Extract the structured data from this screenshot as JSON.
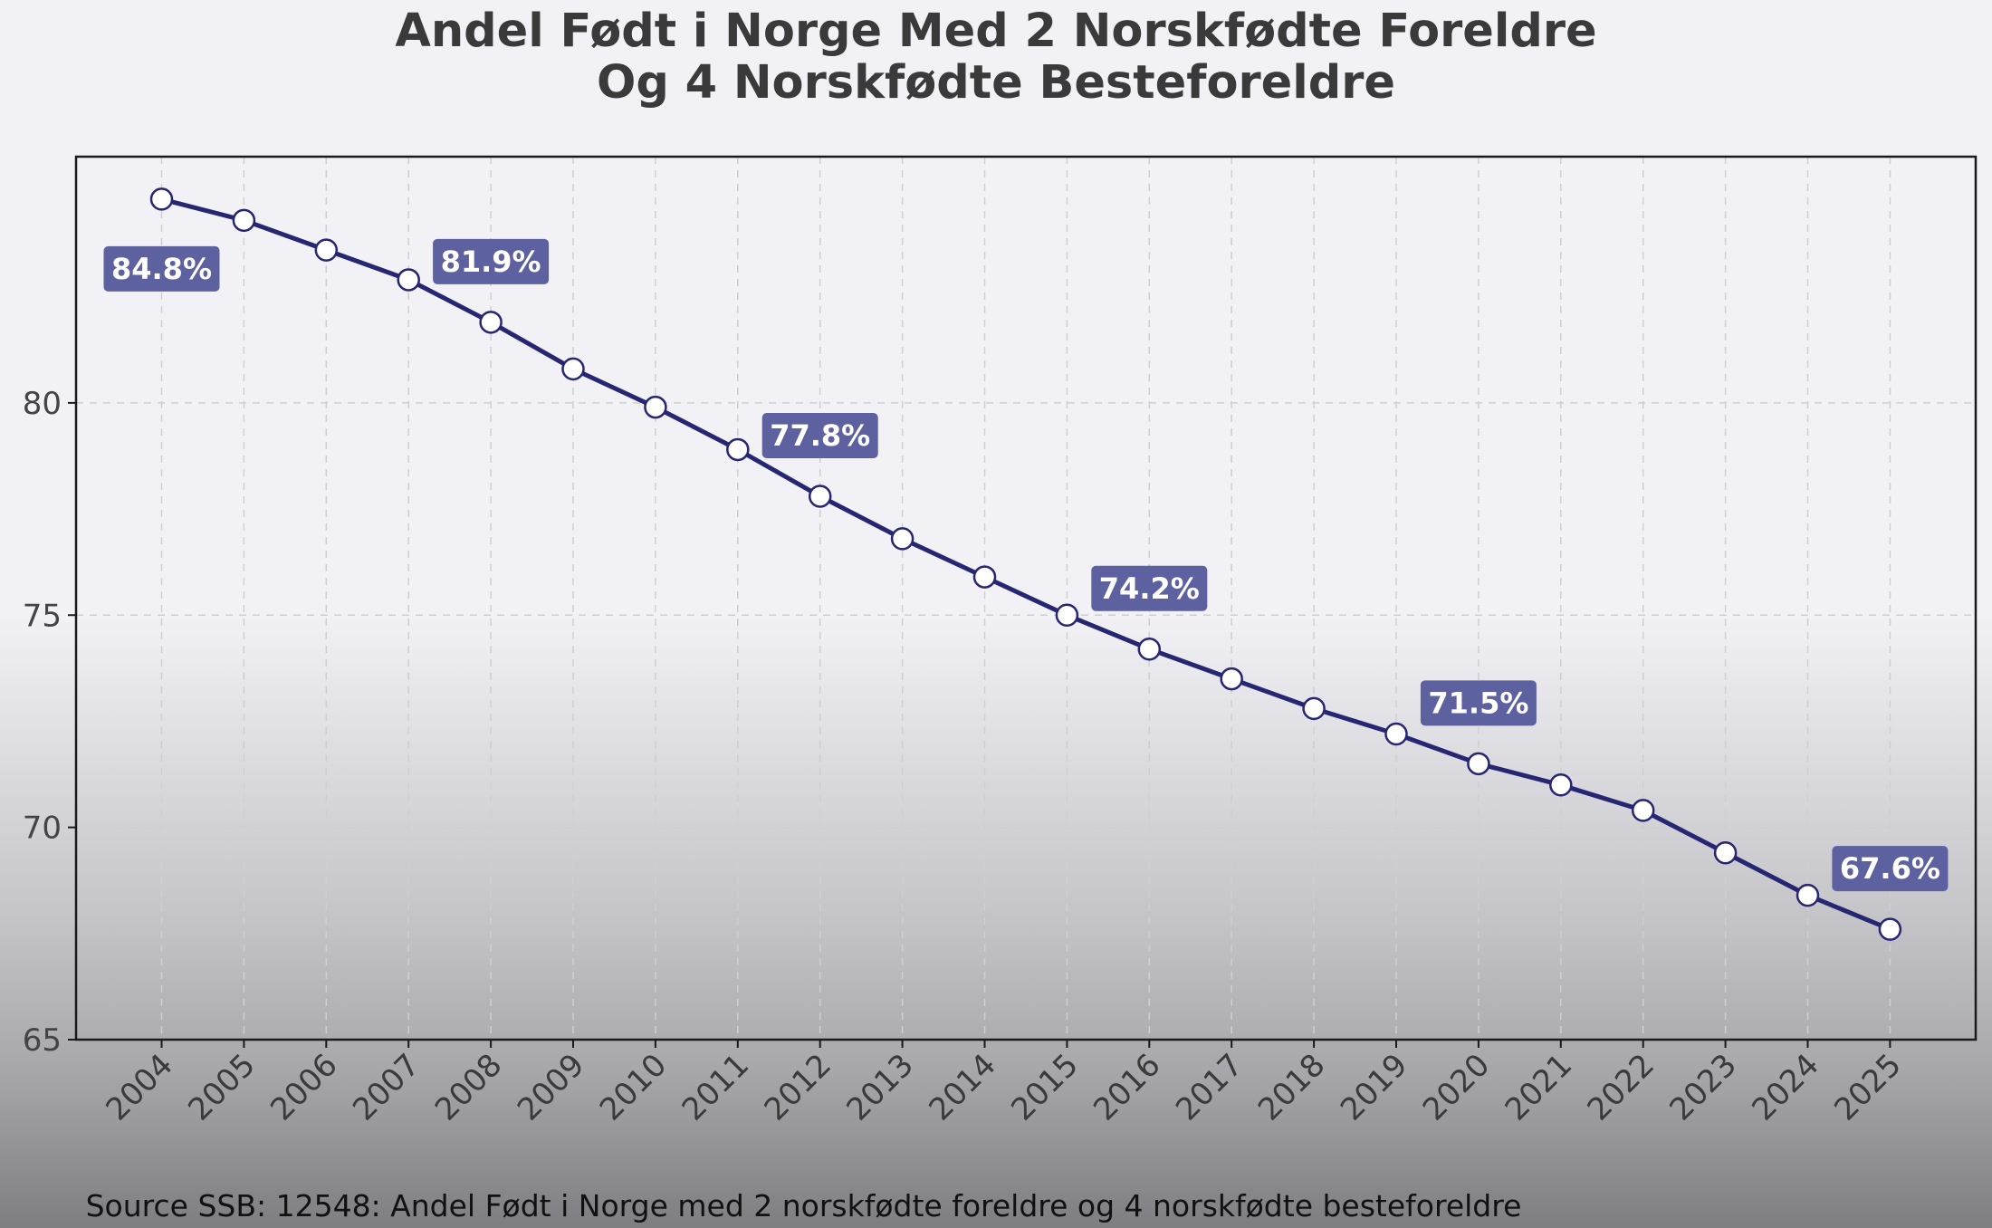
{
  "chart_data": {
    "type": "line",
    "title": "Andel Født i Norge Med 2 Norskfødte Foreldre\nOg 4 Norskfødte Besteforeldre",
    "title_lines": [
      "Andel Født i Norge Med 2 Norskfødte Foreldre",
      "Og 4 Norskfødte Besteforeldre"
    ],
    "xlabel": "",
    "ylabel": "",
    "x": [
      "2004",
      "2005",
      "2006",
      "2007",
      "2008",
      "2009",
      "2010",
      "2011",
      "2012",
      "2013",
      "2014",
      "2015",
      "2016",
      "2017",
      "2018",
      "2019",
      "2020",
      "2021",
      "2022",
      "2023",
      "2024",
      "2025"
    ],
    "series": [
      {
        "values": [
          84.8,
          84.3,
          83.6,
          82.9,
          81.9,
          80.8,
          79.9,
          78.9,
          77.8,
          76.8,
          75.9,
          75.0,
          74.2,
          73.5,
          72.8,
          72.2,
          71.5,
          71.0,
          70.4,
          69.4,
          68.4,
          67.6
        ]
      }
    ],
    "data_labels": [
      {
        "x": "2004",
        "text": "84.8%",
        "placement": "below"
      },
      {
        "x": "2008",
        "text": "81.9%",
        "placement": "above"
      },
      {
        "x": "2012",
        "text": "77.8%",
        "placement": "above"
      },
      {
        "x": "2016",
        "text": "74.2%",
        "placement": "above"
      },
      {
        "x": "2020",
        "text": "71.5%",
        "placement": "above"
      },
      {
        "x": "2025",
        "text": "67.6%",
        "placement": "above"
      }
    ],
    "ylim": [
      65,
      85.8
    ],
    "yticks": [
      65,
      70,
      75,
      80
    ],
    "grid": true,
    "line_color": "#262673",
    "marker_fill": "#ffffff",
    "label_color": "#5e61a0",
    "source": "Source SSB: 12548: Andel Født i Norge med 2 norskfødte foreldre og 4 norskfødte besteforeldre"
  }
}
